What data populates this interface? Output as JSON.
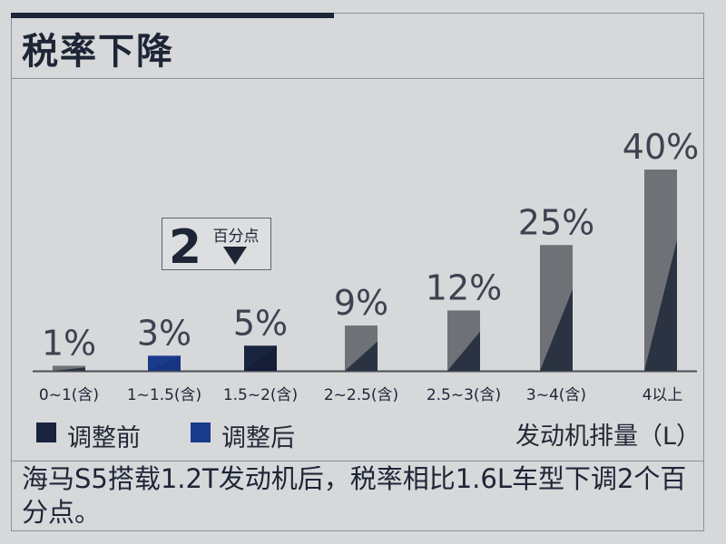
{
  "title": "税率下降",
  "colors": {
    "bar_gray": "#6e7277",
    "bar_dark": "#2b3342",
    "bar_before": "#192440",
    "bar_after": "#1a3a8c"
  },
  "legend": {
    "before": "调整前",
    "after": "调整后"
  },
  "callout": {
    "number": "2",
    "unit": "百分点"
  },
  "caption": "海马S5搭载1.2T发动机后，税率相比1.6L车型下调2个百分点。",
  "chart_data": {
    "type": "bar",
    "xlabel": "发动机排量（L）",
    "categories": [
      "0~1(含)",
      "1~1.5(含)",
      "1.5~2(含)",
      "2~2.5(含)",
      "2.5~3(含)",
      "3~4(含)",
      "4以上"
    ],
    "values": [
      1,
      3,
      5,
      9,
      12,
      25,
      40
    ],
    "data_labels": [
      "1%",
      "3%",
      "5%",
      "9%",
      "12%",
      "25%",
      "40%"
    ],
    "ylim": [
      0,
      40
    ],
    "grid": false,
    "legend_position": "bottom-left"
  }
}
